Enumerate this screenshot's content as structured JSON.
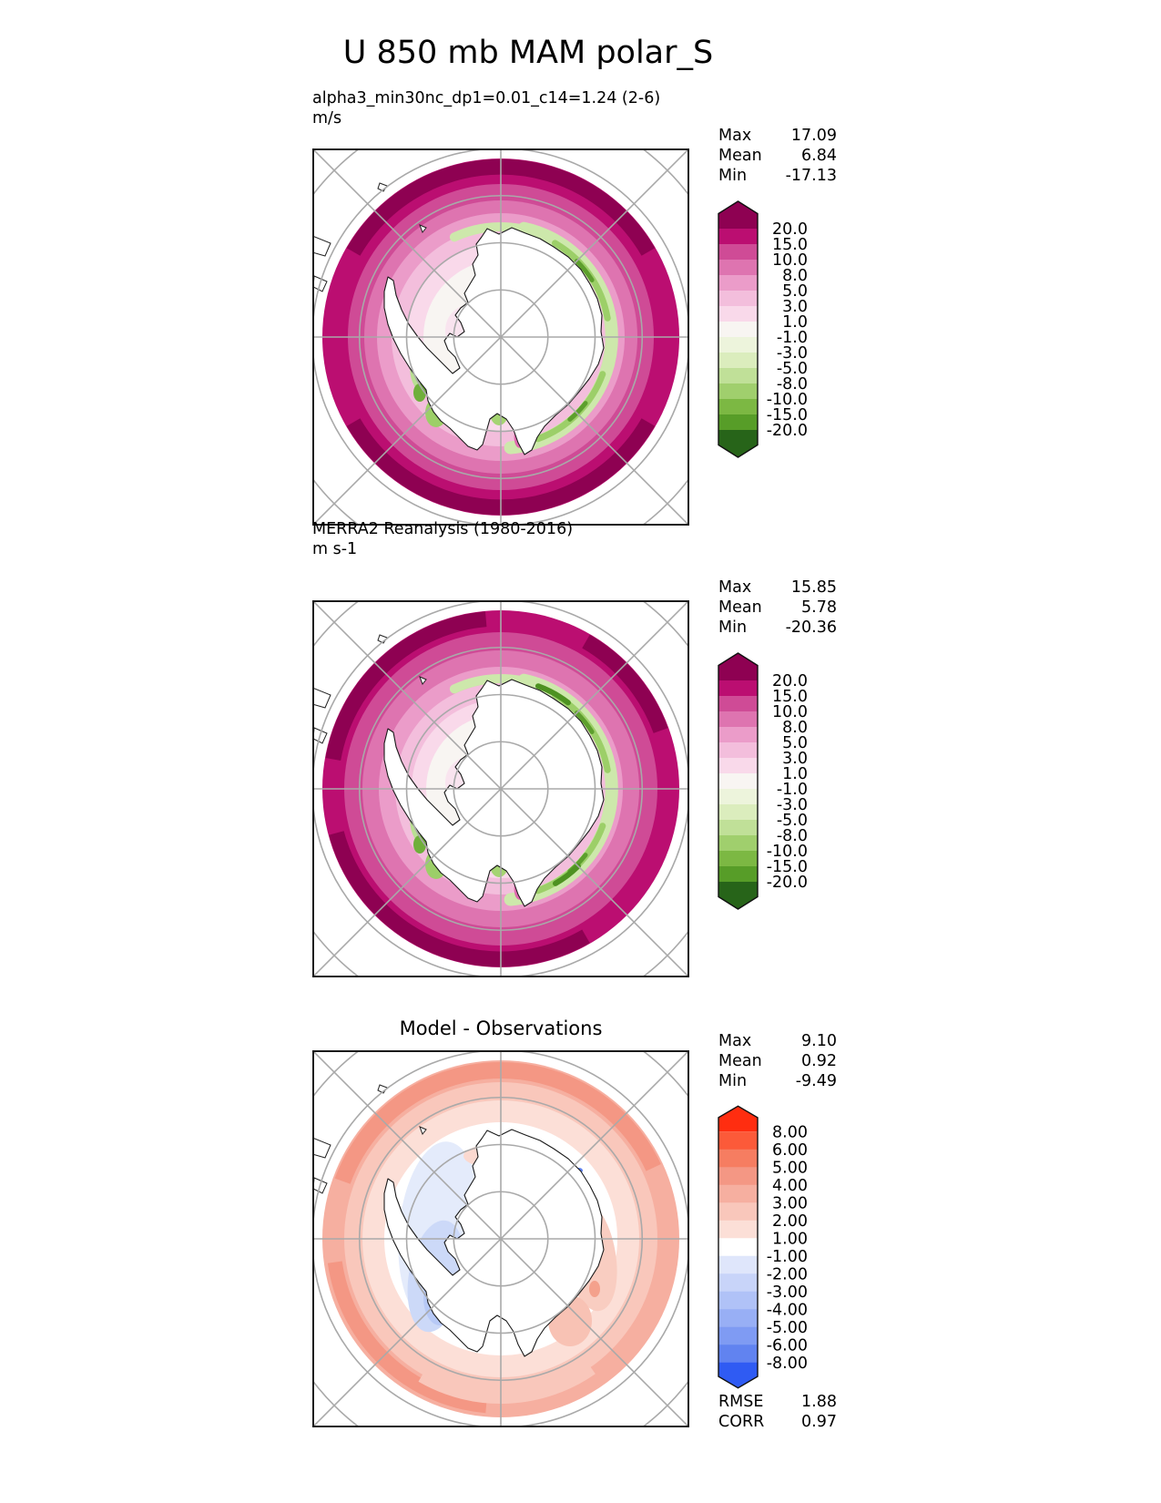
{
  "title": "U 850 mb MAM polar_S",
  "panels": {
    "model": {
      "title": "alpha3_min30nc_dp1=0.01_c14=1.24 (2-6)",
      "units": "m/s",
      "stats": [
        [
          "Max",
          "17.09"
        ],
        [
          "Mean",
          "6.84"
        ],
        [
          "Min",
          "-17.13"
        ]
      ],
      "colorbar": {
        "tick_labels": [
          "20.0",
          "15.0",
          "10.0",
          "8.0",
          "5.0",
          "3.0",
          "1.0",
          "-1.0",
          "-3.0",
          "-5.0",
          "-8.0",
          "-10.0",
          "-15.0",
          "-20.0"
        ],
        "colors": [
          "#8e0152",
          "#bb0e71",
          "#cf4b96",
          "#de74b0",
          "#eb9cc9",
          "#f3bedc",
          "#f9d9ea",
          "#f8f5f2",
          "#edf4dc",
          "#dbedbd",
          "#c0e098",
          "#a0cf6d",
          "#7cb843",
          "#579d28",
          "#276419"
        ]
      }
    },
    "obs": {
      "title": "MERRA2 Reanalysis (1980-2016)",
      "units": "m s-1",
      "stats": [
        [
          "Max",
          "15.85"
        ],
        [
          "Mean",
          "5.78"
        ],
        [
          "Min",
          "-20.36"
        ]
      ],
      "colorbar": {
        "tick_labels": [
          "20.0",
          "15.0",
          "10.0",
          "8.0",
          "5.0",
          "3.0",
          "1.0",
          "-1.0",
          "-3.0",
          "-5.0",
          "-8.0",
          "-10.0",
          "-15.0",
          "-20.0"
        ],
        "colors": [
          "#8e0152",
          "#bb0e71",
          "#cf4b96",
          "#de74b0",
          "#eb9cc9",
          "#f3bedc",
          "#f9d9ea",
          "#f8f5f2",
          "#edf4dc",
          "#dbedbd",
          "#c0e098",
          "#a0cf6d",
          "#7cb843",
          "#579d28",
          "#276419"
        ]
      }
    },
    "diff": {
      "title": "Model - Observations",
      "stats": [
        [
          "Max",
          "9.10"
        ],
        [
          "Mean",
          "0.92"
        ],
        [
          "Min",
          "-9.49"
        ]
      ],
      "metrics": [
        [
          "RMSE",
          "1.88"
        ],
        [
          "CORR",
          "0.97"
        ]
      ],
      "colorbar": {
        "tick_labels": [
          "8.00",
          "6.00",
          "5.00",
          "4.00",
          "3.00",
          "2.00",
          "1.00",
          "-1.00",
          "-2.00",
          "-3.00",
          "-4.00",
          "-5.00",
          "-6.00",
          "-8.00"
        ],
        "colors": [
          "#ff2d10",
          "#fc5a39",
          "#f67d61",
          "#f49784",
          "#f6afa0",
          "#f9c7bb",
          "#fcdfd7",
          "#ffffff",
          "#dfe6fb",
          "#c8d4f9",
          "#b0c2f7",
          "#98aff5",
          "#7f9bf3",
          "#6183f0",
          "#2f5bf3"
        ]
      }
    }
  },
  "chart_data": [
    {
      "type": "heatmap",
      "subtype": "filled-contour polar stereographic map (Antarctica, south pole)",
      "title": "alpha3_min30nc_dp1=0.01_c14=1.24 (2-6)",
      "units": "m/s",
      "variable": "U 850 mb MAM",
      "stats": {
        "max": 17.09,
        "mean": 6.84,
        "min": -17.13
      },
      "levels": [
        -20.0,
        -15.0,
        -10.0,
        -8.0,
        -5.0,
        -3.0,
        -1.0,
        1.0,
        3.0,
        5.0,
        8.0,
        10.0,
        15.0,
        20.0
      ],
      "colormap": "pink-white-green diverging (PiYG reversed), pink = positive westerly wind",
      "legend_position": "right",
      "grid": "graticule circles every 10 deg latitude, meridians every 45 deg"
    },
    {
      "type": "heatmap",
      "subtype": "filled-contour polar stereographic map (Antarctica, south pole)",
      "title": "MERRA2 Reanalysis (1980-2016)",
      "units": "m s-1",
      "variable": "U 850 mb MAM",
      "stats": {
        "max": 15.85,
        "mean": 5.78,
        "min": -20.36
      },
      "levels": [
        -20.0,
        -15.0,
        -10.0,
        -8.0,
        -5.0,
        -3.0,
        -1.0,
        1.0,
        3.0,
        5.0,
        8.0,
        10.0,
        15.0,
        20.0
      ],
      "colormap": "pink-white-green diverging (PiYG reversed)",
      "legend_position": "right",
      "grid": "graticule circles every 10 deg latitude, meridians every 45 deg"
    },
    {
      "type": "heatmap",
      "subtype": "difference map (model minus observations), polar stereographic",
      "title": "Model - Observations",
      "stats": {
        "max": 9.1,
        "mean": 0.92,
        "min": -9.49,
        "rmse": 1.88,
        "corr": 0.97
      },
      "levels": [
        -8.0,
        -6.0,
        -5.0,
        -4.0,
        -3.0,
        -2.0,
        -1.0,
        1.0,
        2.0,
        3.0,
        4.0,
        5.0,
        6.0,
        8.0
      ],
      "colormap": "blue-white-red diverging, red = model too strong",
      "legend_position": "right",
      "grid": "graticule circles every 10 deg latitude, meridians every 45 deg"
    }
  ]
}
